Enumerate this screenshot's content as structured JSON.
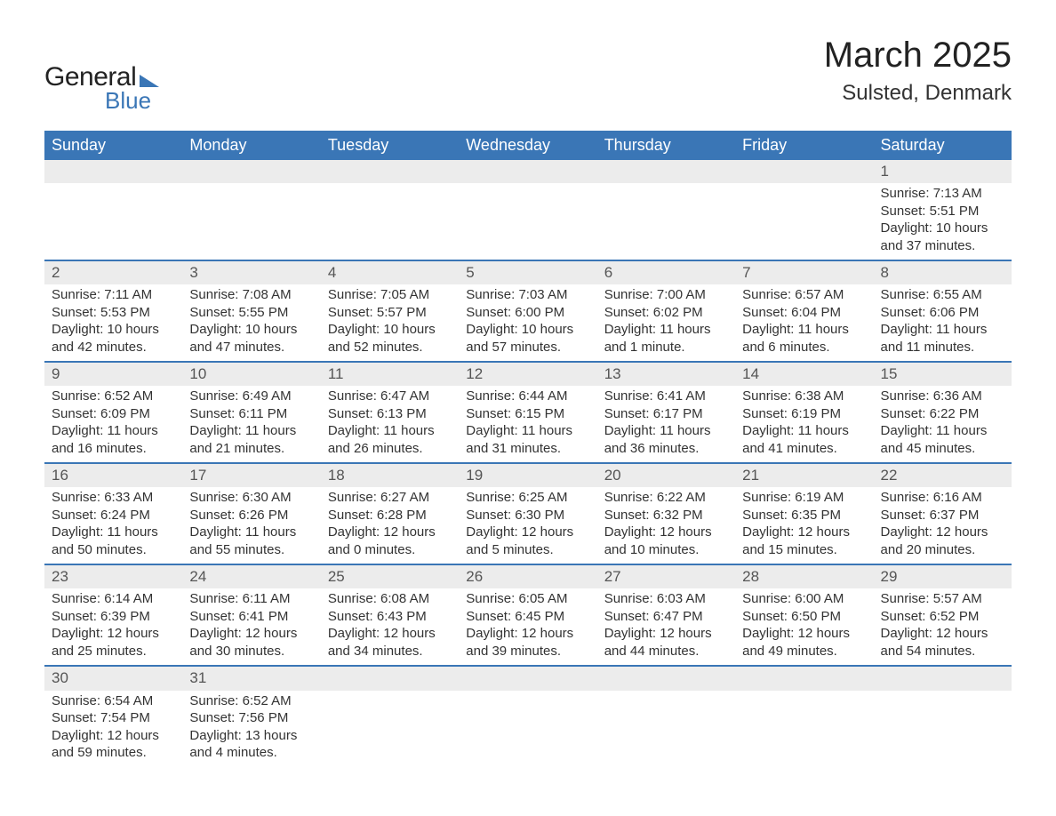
{
  "logo": {
    "word1": "General",
    "word2": "Blue"
  },
  "title": "March 2025",
  "location": "Sulsted, Denmark",
  "columns": [
    "Sunday",
    "Monday",
    "Tuesday",
    "Wednesday",
    "Thursday",
    "Friday",
    "Saturday"
  ],
  "style": {
    "header_bg": "#3a76b6",
    "header_fg": "#ffffff",
    "daynum_bg": "#ececec",
    "row_border": "#3a76b6",
    "body_bg": "#ffffff",
    "text_color": "#333333",
    "title_fontsize": 40,
    "location_fontsize": 24,
    "th_fontsize": 18,
    "cell_fontsize": 15
  },
  "weeks": [
    [
      null,
      null,
      null,
      null,
      null,
      null,
      {
        "n": "1",
        "sunrise": "7:13 AM",
        "sunset": "5:51 PM",
        "daylight": "10 hours and 37 minutes."
      }
    ],
    [
      {
        "n": "2",
        "sunrise": "7:11 AM",
        "sunset": "5:53 PM",
        "daylight": "10 hours and 42 minutes."
      },
      {
        "n": "3",
        "sunrise": "7:08 AM",
        "sunset": "5:55 PM",
        "daylight": "10 hours and 47 minutes."
      },
      {
        "n": "4",
        "sunrise": "7:05 AM",
        "sunset": "5:57 PM",
        "daylight": "10 hours and 52 minutes."
      },
      {
        "n": "5",
        "sunrise": "7:03 AM",
        "sunset": "6:00 PM",
        "daylight": "10 hours and 57 minutes."
      },
      {
        "n": "6",
        "sunrise": "7:00 AM",
        "sunset": "6:02 PM",
        "daylight": "11 hours and 1 minute."
      },
      {
        "n": "7",
        "sunrise": "6:57 AM",
        "sunset": "6:04 PM",
        "daylight": "11 hours and 6 minutes."
      },
      {
        "n": "8",
        "sunrise": "6:55 AM",
        "sunset": "6:06 PM",
        "daylight": "11 hours and 11 minutes."
      }
    ],
    [
      {
        "n": "9",
        "sunrise": "6:52 AM",
        "sunset": "6:09 PM",
        "daylight": "11 hours and 16 minutes."
      },
      {
        "n": "10",
        "sunrise": "6:49 AM",
        "sunset": "6:11 PM",
        "daylight": "11 hours and 21 minutes."
      },
      {
        "n": "11",
        "sunrise": "6:47 AM",
        "sunset": "6:13 PM",
        "daylight": "11 hours and 26 minutes."
      },
      {
        "n": "12",
        "sunrise": "6:44 AM",
        "sunset": "6:15 PM",
        "daylight": "11 hours and 31 minutes."
      },
      {
        "n": "13",
        "sunrise": "6:41 AM",
        "sunset": "6:17 PM",
        "daylight": "11 hours and 36 minutes."
      },
      {
        "n": "14",
        "sunrise": "6:38 AM",
        "sunset": "6:19 PM",
        "daylight": "11 hours and 41 minutes."
      },
      {
        "n": "15",
        "sunrise": "6:36 AM",
        "sunset": "6:22 PM",
        "daylight": "11 hours and 45 minutes."
      }
    ],
    [
      {
        "n": "16",
        "sunrise": "6:33 AM",
        "sunset": "6:24 PM",
        "daylight": "11 hours and 50 minutes."
      },
      {
        "n": "17",
        "sunrise": "6:30 AM",
        "sunset": "6:26 PM",
        "daylight": "11 hours and 55 minutes."
      },
      {
        "n": "18",
        "sunrise": "6:27 AM",
        "sunset": "6:28 PM",
        "daylight": "12 hours and 0 minutes."
      },
      {
        "n": "19",
        "sunrise": "6:25 AM",
        "sunset": "6:30 PM",
        "daylight": "12 hours and 5 minutes."
      },
      {
        "n": "20",
        "sunrise": "6:22 AM",
        "sunset": "6:32 PM",
        "daylight": "12 hours and 10 minutes."
      },
      {
        "n": "21",
        "sunrise": "6:19 AM",
        "sunset": "6:35 PM",
        "daylight": "12 hours and 15 minutes."
      },
      {
        "n": "22",
        "sunrise": "6:16 AM",
        "sunset": "6:37 PM",
        "daylight": "12 hours and 20 minutes."
      }
    ],
    [
      {
        "n": "23",
        "sunrise": "6:14 AM",
        "sunset": "6:39 PM",
        "daylight": "12 hours and 25 minutes."
      },
      {
        "n": "24",
        "sunrise": "6:11 AM",
        "sunset": "6:41 PM",
        "daylight": "12 hours and 30 minutes."
      },
      {
        "n": "25",
        "sunrise": "6:08 AM",
        "sunset": "6:43 PM",
        "daylight": "12 hours and 34 minutes."
      },
      {
        "n": "26",
        "sunrise": "6:05 AM",
        "sunset": "6:45 PM",
        "daylight": "12 hours and 39 minutes."
      },
      {
        "n": "27",
        "sunrise": "6:03 AM",
        "sunset": "6:47 PM",
        "daylight": "12 hours and 44 minutes."
      },
      {
        "n": "28",
        "sunrise": "6:00 AM",
        "sunset": "6:50 PM",
        "daylight": "12 hours and 49 minutes."
      },
      {
        "n": "29",
        "sunrise": "5:57 AM",
        "sunset": "6:52 PM",
        "daylight": "12 hours and 54 minutes."
      }
    ],
    [
      {
        "n": "30",
        "sunrise": "6:54 AM",
        "sunset": "7:54 PM",
        "daylight": "12 hours and 59 minutes."
      },
      {
        "n": "31",
        "sunrise": "6:52 AM",
        "sunset": "7:56 PM",
        "daylight": "13 hours and 4 minutes."
      },
      null,
      null,
      null,
      null,
      null
    ]
  ],
  "labels": {
    "sunrise": "Sunrise:",
    "sunset": "Sunset:",
    "daylight": "Daylight:"
  }
}
